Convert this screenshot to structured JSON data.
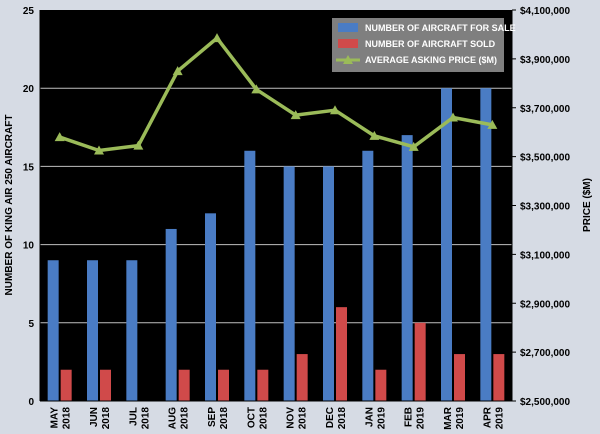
{
  "chart_data": {
    "type": "bar",
    "categories": [
      [
        "MAY",
        "2018"
      ],
      [
        "JUN",
        "2018"
      ],
      [
        "JUL",
        "2018"
      ],
      [
        "AUG",
        "2018"
      ],
      [
        "SEP",
        "2018"
      ],
      [
        "OCT",
        "2018"
      ],
      [
        "NOV",
        "2018"
      ],
      [
        "DEC",
        "2018"
      ],
      [
        "JAN",
        "2019"
      ],
      [
        "FEB",
        "2019"
      ],
      [
        "MAR",
        "2019"
      ],
      [
        "APR",
        "2019"
      ]
    ],
    "series": [
      {
        "name": "NUMBER OF AIRCRAFT FOR SALE",
        "type": "bar",
        "axis": "left",
        "color": "#4a7cc4",
        "values": [
          9,
          9,
          9,
          11,
          12,
          16,
          15,
          15,
          16,
          17,
          20,
          20
        ]
      },
      {
        "name": "NUMBER OF AIRCRAFT SOLD",
        "type": "bar",
        "axis": "left",
        "color": "#d04a4a",
        "values": [
          2,
          2,
          null,
          2,
          2,
          2,
          3,
          6,
          2,
          5,
          3,
          3
        ]
      },
      {
        "name": "AVERAGE ASKING PRICE ($M)",
        "type": "line",
        "axis": "right",
        "color": "#9bbb59",
        "values": [
          3580000,
          3525000,
          3545000,
          3850000,
          3985000,
          3775000,
          3670000,
          3690000,
          3585000,
          3540000,
          3660000,
          3630000
        ]
      }
    ],
    "ylabel": "NUMBER OF KING AIR 250 AIRCRAFT",
    "y2label": "PRICE ($M)",
    "ylim": [
      0,
      25
    ],
    "yticks": [
      "0",
      "5",
      "10",
      "15",
      "20",
      "25"
    ],
    "y2lim": [
      2500000,
      4100000
    ],
    "y2ticks": [
      "$2,500,000",
      "$2,700,000",
      "$2,900,000",
      "$3,100,000",
      "$3,300,000",
      "$3,500,000",
      "$3,700,000",
      "$3,900,000",
      "$4,100,000"
    ],
    "grid": true,
    "legend": "top-right",
    "colors": {
      "plot_background": "#000000",
      "page_background": "#d6dbe4",
      "grid": "#bfbfbf"
    }
  }
}
